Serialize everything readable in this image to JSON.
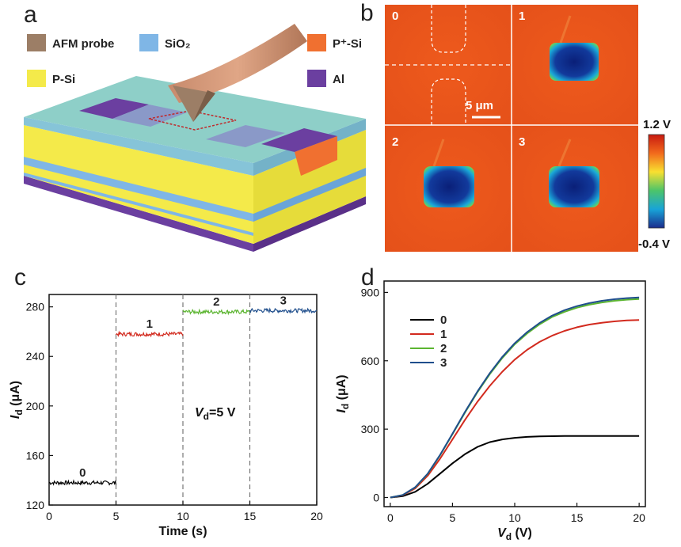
{
  "panels": {
    "a": "a",
    "b": "b",
    "c": "c",
    "d": "d"
  },
  "legend_a": [
    {
      "label": "AFM probe",
      "color": "#9c7e66"
    },
    {
      "label": "SiO₂",
      "color": "#7fb6e6"
    },
    {
      "label": "P⁺-Si",
      "color": "#f07030"
    },
    {
      "label": "P-Si",
      "color": "#f4ea4a"
    },
    {
      "label": "Al",
      "color": "#6b3fa0"
    }
  ],
  "maps": {
    "labels": [
      "0",
      "1",
      "2",
      "3"
    ],
    "scale_bar": "5 μm",
    "colorbar_max": "1.2 V",
    "colorbar_min": "-0.4 V"
  },
  "chart_data": [
    {
      "type": "line",
      "panel": "c",
      "xlabel": "Time (s)",
      "ylabel": "I",
      "ylabel_sub": "d",
      "ylabel_unit": " (μA)",
      "xlim": [
        0,
        20
      ],
      "ylim": [
        120,
        290
      ],
      "xticks": [
        0,
        5,
        10,
        15,
        20
      ],
      "yticks": [
        120,
        160,
        200,
        240,
        280
      ],
      "dashed_x": [
        5,
        10,
        15
      ],
      "annotation": {
        "var": "V",
        "sub": "d",
        "text": "=5 V"
      },
      "series": [
        {
          "name": "0",
          "x": [
            0,
            5
          ],
          "y": 138,
          "color": "#000000"
        },
        {
          "name": "1",
          "x": [
            5,
            10
          ],
          "y": 258,
          "color": "#d22a1e"
        },
        {
          "name": "2",
          "x": [
            10,
            15
          ],
          "y": 276,
          "color": "#5cb531"
        },
        {
          "name": "3",
          "x": [
            15,
            20
          ],
          "y": 277,
          "color": "#1f4e8c"
        }
      ]
    },
    {
      "type": "line",
      "panel": "d",
      "xlabel": "V",
      "xlabel_sub": "d",
      "xlabel_unit": " (V)",
      "ylabel": "I",
      "ylabel_sub": "d",
      "ylabel_unit": " (μA)",
      "xlim": [
        -0.5,
        20.5
      ],
      "ylim": [
        -40,
        950
      ],
      "xticks": [
        0,
        5,
        10,
        15,
        20
      ],
      "yticks": [
        0,
        300,
        600,
        900
      ],
      "legend_position": "top-left",
      "x": [
        0,
        1,
        2,
        3,
        4,
        5,
        6,
        7,
        8,
        9,
        10,
        11,
        12,
        13,
        14,
        15,
        16,
        17,
        18,
        19,
        20
      ],
      "series": [
        {
          "name": "0",
          "color": "#000000",
          "values": [
            0,
            6,
            25,
            60,
            105,
            150,
            190,
            222,
            243,
            255,
            262,
            266,
            268,
            269,
            270,
            270,
            270,
            270,
            270,
            270,
            270
          ]
        },
        {
          "name": "1",
          "color": "#d22a1e",
          "values": [
            0,
            10,
            40,
            95,
            170,
            255,
            340,
            420,
            490,
            552,
            605,
            648,
            683,
            710,
            731,
            747,
            759,
            767,
            773,
            777,
            779
          ]
        },
        {
          "name": "2",
          "color": "#5cb531",
          "values": [
            0,
            11,
            44,
            103,
            185,
            278,
            372,
            462,
            542,
            612,
            672,
            720,
            760,
            792,
            815,
            833,
            846,
            856,
            863,
            868,
            871
          ]
        },
        {
          "name": "3",
          "color": "#1f4e8c",
          "values": [
            0,
            11,
            45,
            104,
            187,
            280,
            375,
            465,
            546,
            617,
            677,
            726,
            766,
            798,
            822,
            840,
            853,
            863,
            870,
            875,
            878
          ]
        }
      ]
    }
  ]
}
